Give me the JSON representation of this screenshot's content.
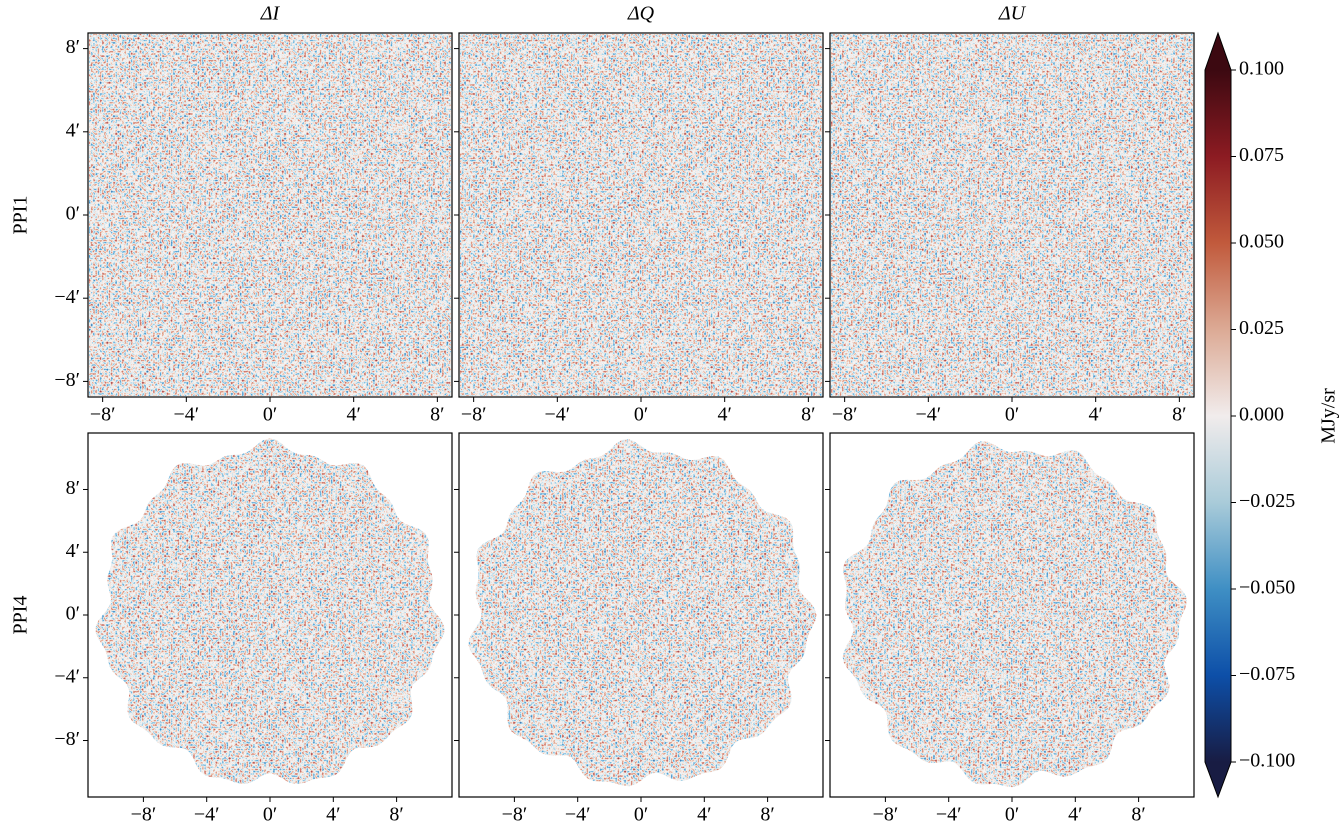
{
  "chart_data": {
    "type": "image-grid",
    "column_titles": [
      "ΔI",
      "ΔQ",
      "ΔU"
    ],
    "row_labels": [
      "PPI1",
      "PPI4"
    ],
    "rows": [
      {
        "shape": "square",
        "xlim": [
          -8.7,
          8.7
        ],
        "ylim": [
          -8.75,
          8.75
        ],
        "xticks": [
          {
            "value": -8,
            "label": "−8′"
          },
          {
            "value": -4,
            "label": "−4′"
          },
          {
            "value": 0,
            "label": "0′"
          },
          {
            "value": 4,
            "label": "4′"
          },
          {
            "value": 8,
            "label": "8′"
          }
        ],
        "yticks": [
          {
            "value": 8,
            "label": "8′"
          },
          {
            "value": 4,
            "label": "4′"
          },
          {
            "value": 0,
            "label": "0′"
          },
          {
            "value": -4,
            "label": "−4′"
          },
          {
            "value": -8,
            "label": "−8′"
          }
        ]
      },
      {
        "shape": "round",
        "xlim": [
          -11.5,
          11.5
        ],
        "ylim": [
          -11.6,
          11.6
        ],
        "xticks": [
          {
            "value": -8,
            "label": "−8′"
          },
          {
            "value": -4,
            "label": "−4′"
          },
          {
            "value": 0,
            "label": "0′"
          },
          {
            "value": 4,
            "label": "4′"
          },
          {
            "value": 8,
            "label": "8′"
          }
        ],
        "yticks": [
          {
            "value": 8,
            "label": "8′"
          },
          {
            "value": 4,
            "label": "4′"
          },
          {
            "value": 0,
            "label": "0′"
          },
          {
            "value": -4,
            "label": "−4′"
          },
          {
            "value": -8,
            "label": "−8′"
          }
        ]
      }
    ],
    "colorbar": {
      "label": "MJy/sr",
      "lim": [
        -0.1,
        0.1
      ],
      "extend": "both",
      "colors": [
        "#181c43",
        "#0d4fa8",
        "#3f8fc4",
        "#a9cbd9",
        "#f1ecec",
        "#dcaa95",
        "#c15a3c",
        "#8c1b22",
        "#3c0911"
      ],
      "ticks": [
        {
          "value": 0.1,
          "label": "0.100"
        },
        {
          "value": 0.075,
          "label": "0.075"
        },
        {
          "value": 0.05,
          "label": "0.050"
        },
        {
          "value": 0.025,
          "label": "0.025"
        },
        {
          "value": 0,
          "label": "0.000"
        },
        {
          "value": -0.025,
          "label": "−0.025"
        },
        {
          "value": -0.05,
          "label": "−0.050"
        },
        {
          "value": -0.075,
          "label": "−0.075"
        },
        {
          "value": -0.1,
          "label": "−0.100"
        }
      ]
    }
  }
}
